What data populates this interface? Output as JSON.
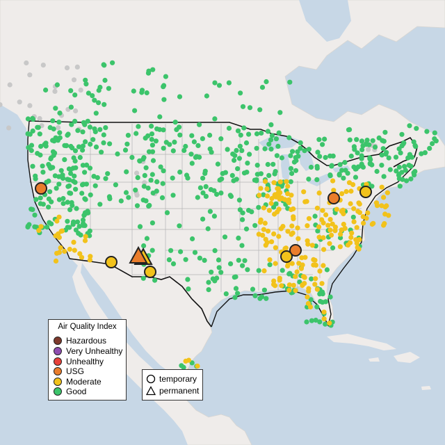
{
  "legend": {
    "title": "Air Quality Index",
    "categories": [
      {
        "label": "Hazardous",
        "color": "#7e3a2c"
      },
      {
        "label": "Very Unhealthy",
        "color": "#8e4db0"
      },
      {
        "label": "Unhealthy",
        "color": "#e8413a"
      },
      {
        "label": "USG",
        "color": "#ea7d2c"
      },
      {
        "label": "Moderate",
        "color": "#f2c21b"
      },
      {
        "label": "Good",
        "color": "#3cc46b"
      }
    ]
  },
  "monitor_types": {
    "temporary": "temporary",
    "permanent": "permanent"
  },
  "colors": {
    "water": "#c7d7e6",
    "land": "#efecea",
    "no_data": "#c8c8c8",
    "border": "#111111",
    "state_line": "#b5b5b5"
  }
}
